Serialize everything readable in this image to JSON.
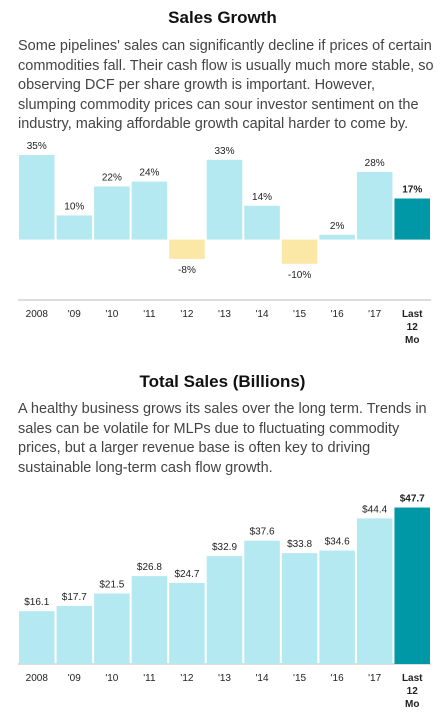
{
  "chart_data": [
    {
      "type": "bar",
      "title": "Sales Growth",
      "description": "Some pipelines' sales can significantly decline if prices of certain commodities fall. Their cash flow is usually much more stable, so observing DCF per share growth is important. However, slumping commodity prices can sour investor sentiment on the industry, making affordable growth capital harder to come by.",
      "categories": [
        "2008",
        "'09",
        "'10",
        "'11",
        "'12",
        "'13",
        "'14",
        "'15",
        "'16",
        "'17",
        "Last 12 Mo"
      ],
      "values": [
        35,
        10,
        22,
        24,
        -8,
        33,
        14,
        -10,
        2,
        28,
        17
      ],
      "value_labels": [
        "35%",
        "10%",
        "22%",
        "24%",
        "-8%",
        "33%",
        "14%",
        "-10%",
        "2%",
        "28%",
        "17%"
      ],
      "colors": [
        "#b5e9f1",
        "#b5e9f1",
        "#b5e9f1",
        "#b5e9f1",
        "#fbe8a6",
        "#b5e9f1",
        "#b5e9f1",
        "#fbe8a6",
        "#b5e9f1",
        "#b5e9f1",
        "#0097a7"
      ],
      "ylim": [
        -25,
        35
      ]
    },
    {
      "type": "bar",
      "title": "Total Sales (Billions)",
      "description": "A healthy business grows its sales over the long term. Trends in sales can be volatile for MLPs due to fluctuating commodity prices, but a larger revenue base is often key to driving sustainable long-term cash flow growth.",
      "categories": [
        "2008",
        "'09",
        "'10",
        "'11",
        "'12",
        "'13",
        "'14",
        "'15",
        "'16",
        "'17",
        "Last 12 Mo"
      ],
      "values": [
        16.1,
        17.7,
        21.5,
        26.8,
        24.7,
        32.9,
        37.6,
        33.8,
        34.6,
        44.4,
        47.7
      ],
      "value_labels": [
        "$16.1",
        "$17.7",
        "$21.5",
        "$26.8",
        "$24.7",
        "$32.9",
        "$37.6",
        "$33.8",
        "$34.6",
        "$44.4",
        "$47.7"
      ],
      "colors": [
        "#b5e9f1",
        "#b5e9f1",
        "#b5e9f1",
        "#b5e9f1",
        "#b5e9f1",
        "#b5e9f1",
        "#b5e9f1",
        "#b5e9f1",
        "#b5e9f1",
        "#b5e9f1",
        "#0097a7"
      ],
      "ylim": [
        0,
        50
      ]
    }
  ]
}
